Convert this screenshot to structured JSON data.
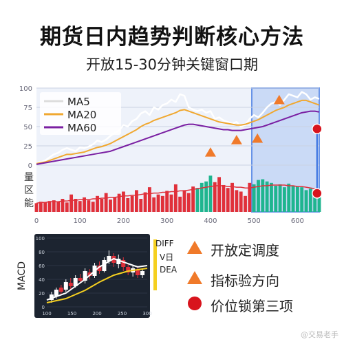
{
  "header": {
    "title": "期货日内趋势判断核心方法",
    "subtitle": "开放15-30分钟关键窗口期"
  },
  "chart_data": [
    {
      "type": "line",
      "panel": "main",
      "x": [
        0,
        10,
        20,
        30,
        40,
        50,
        60,
        70,
        80,
        90,
        100,
        110,
        120,
        130,
        140,
        150,
        160,
        170,
        180,
        190,
        200,
        210,
        220,
        230,
        240,
        250,
        260,
        270,
        280,
        290,
        300,
        310,
        320,
        330,
        340,
        350,
        360,
        370,
        380,
        390,
        400,
        410,
        420,
        430,
        440,
        450,
        460,
        470,
        480,
        490,
        500,
        510,
        520,
        530,
        540,
        550,
        560,
        570,
        580,
        590,
        600,
        610,
        620,
        630,
        640,
        650
      ],
      "series": [
        {
          "name": "MA5",
          "color": "#ffffff",
          "values": [
            3,
            4,
            6,
            10,
            14,
            16,
            20,
            22,
            20,
            18,
            23,
            22,
            24,
            27,
            32,
            30,
            33,
            38,
            42,
            45,
            52,
            50,
            57,
            60,
            67,
            70,
            65,
            75,
            72,
            78,
            80,
            85,
            82,
            92,
            90,
            75,
            72,
            70,
            72,
            68,
            70,
            60,
            62,
            58,
            56,
            54,
            56,
            50,
            52,
            60,
            65,
            62,
            68,
            75,
            80,
            82,
            78,
            85,
            92,
            90,
            88,
            95,
            92,
            85,
            88,
            86
          ]
        },
        {
          "name": "MA20",
          "color": "#f0a830",
          "values": [
            2,
            3,
            4,
            6,
            8,
            10,
            12,
            14,
            14,
            15,
            16,
            17,
            19,
            21,
            23,
            24,
            26,
            28,
            31,
            34,
            37,
            40,
            43,
            46,
            50,
            53,
            55,
            58,
            60,
            62,
            64,
            66,
            68,
            71,
            72,
            70,
            68,
            66,
            64,
            62,
            60,
            58,
            56,
            55,
            54,
            53,
            52,
            52,
            53,
            55,
            57,
            59,
            62,
            65,
            68,
            71,
            73,
            75,
            78,
            80,
            82,
            84,
            84,
            82,
            80,
            78
          ]
        },
        {
          "name": "MA60",
          "color": "#7a1fa2",
          "values": [
            1,
            2,
            3,
            4,
            5,
            6,
            7,
            8,
            9,
            10,
            11,
            12,
            13,
            14,
            15,
            16,
            17,
            18,
            20,
            22,
            24,
            26,
            28,
            30,
            32,
            34,
            36,
            38,
            40,
            42,
            44,
            46,
            48,
            50,
            52,
            53,
            53,
            52,
            51,
            50,
            49,
            48,
            47,
            46,
            46,
            45,
            45,
            45,
            46,
            47,
            48,
            49,
            50,
            52,
            54,
            56,
            58,
            60,
            62,
            64,
            66,
            68,
            69,
            70,
            70,
            69
          ]
        }
      ],
      "xlim": [
        0,
        650
      ],
      "ylim": [
        0,
        100
      ],
      "x_ticks": [
        0,
        100,
        200,
        300,
        400,
        500,
        600
      ],
      "y_ticks": [
        0,
        25,
        50,
        75,
        100
      ],
      "markers": {
        "up_triangles": [
          {
            "x": 400,
            "y": 16
          },
          {
            "x": 460,
            "y": 32
          },
          {
            "x": 508,
            "y": 34
          }
        ],
        "down_triangle": {
          "x": 558,
          "y": 84
        },
        "red_dots": [
          {
            "x": 645,
            "y": 47
          },
          {
            "x": 645,
            "y": -35
          }
        ]
      },
      "highlight_range": [
        495,
        650
      ],
      "volume": {
        "label": [
          "量",
          "区",
          "能"
        ],
        "values": [
          12,
          14,
          13,
          15,
          16,
          14,
          18,
          13,
          24,
          18,
          15,
          20,
          16,
          14,
          22,
          18,
          26,
          17,
          20,
          25,
          28,
          19,
          22,
          30,
          18,
          27,
          34,
          20,
          24,
          22,
          29,
          24,
          38,
          21,
          30,
          26,
          35,
          33,
          40,
          42,
          50,
          41,
          48,
          37,
          33,
          40,
          30,
          28,
          22,
          40,
          38,
          44,
          45,
          42,
          40,
          36,
          38,
          34,
          39,
          36,
          35,
          34,
          30,
          32,
          28,
          25
        ],
        "colors": [
          "r",
          "r",
          "r",
          "r",
          "r",
          "r",
          "r",
          "r",
          "r",
          "r",
          "r",
          "r",
          "r",
          "r",
          "r",
          "r",
          "r",
          "r",
          "r",
          "r",
          "r",
          "r",
          "r",
          "r",
          "r",
          "r",
          "r",
          "r",
          "r",
          "r",
          "r",
          "r",
          "r",
          "r",
          "r",
          "r",
          "r",
          "g",
          "g",
          "g",
          "g",
          "r",
          "r",
          "r",
          "r",
          "r",
          "r",
          "r",
          "r",
          "r",
          "g",
          "g",
          "g",
          "g",
          "g",
          "g",
          "g",
          "g",
          "g",
          "g",
          "g",
          "g",
          "g",
          "g",
          "g",
          "g"
        ],
        "ma": [
          12,
          13,
          13,
          14,
          14,
          14,
          15,
          15,
          16,
          16,
          17,
          17,
          17,
          18,
          18,
          19,
          19,
          20,
          20,
          21,
          22,
          22,
          23,
          23,
          24,
          25,
          25,
          26,
          26,
          27,
          27,
          28,
          28,
          29,
          29,
          30,
          31,
          32,
          33,
          34,
          35,
          36,
          36,
          36,
          35,
          35,
          34,
          34,
          33,
          33,
          34,
          35,
          36,
          36,
          37,
          37,
          37,
          37,
          36,
          36,
          35,
          35,
          34,
          33,
          32,
          31
        ]
      },
      "ylabel": ""
    },
    {
      "type": "candlestick",
      "panel": "macd",
      "ylabel": "MACD",
      "xlim": [
        0,
        300
      ],
      "ylim": [
        0,
        100
      ],
      "x_ticks": [
        100,
        150,
        200,
        250,
        300
      ],
      "x_tick_labels": [
        "100",
        "150",
        "200",
        "250",
        "300"
      ],
      "y_ticks": [
        0,
        20,
        40,
        60,
        80,
        100
      ],
      "candles": [
        {
          "x": 10,
          "o": 10,
          "c": 18,
          "h": 22,
          "l": 6
        },
        {
          "x": 20,
          "o": 15,
          "c": 25,
          "h": 28,
          "l": 12
        },
        {
          "x": 30,
          "o": 28,
          "c": 22,
          "h": 32,
          "l": 18
        },
        {
          "x": 40,
          "o": 25,
          "c": 36,
          "h": 40,
          "l": 22
        },
        {
          "x": 50,
          "o": 35,
          "c": 30,
          "h": 42,
          "l": 26
        },
        {
          "x": 60,
          "o": 30,
          "c": 42,
          "h": 46,
          "l": 28
        },
        {
          "x": 70,
          "o": 42,
          "c": 38,
          "h": 48,
          "l": 34
        },
        {
          "x": 80,
          "o": 38,
          "c": 52,
          "h": 56,
          "l": 34
        },
        {
          "x": 90,
          "o": 50,
          "c": 45,
          "h": 55,
          "l": 40
        },
        {
          "x": 100,
          "o": 45,
          "c": 60,
          "h": 64,
          "l": 42
        },
        {
          "x": 110,
          "o": 60,
          "c": 52,
          "h": 66,
          "l": 48
        },
        {
          "x": 120,
          "o": 52,
          "c": 68,
          "h": 72,
          "l": 50
        },
        {
          "x": 130,
          "o": 66,
          "c": 74,
          "h": 82,
          "l": 62
        },
        {
          "x": 140,
          "o": 74,
          "c": 64,
          "h": 78,
          "l": 58
        },
        {
          "x": 150,
          "o": 62,
          "c": 70,
          "h": 76,
          "l": 56
        },
        {
          "x": 160,
          "o": 68,
          "c": 58,
          "h": 72,
          "l": 52
        },
        {
          "x": 170,
          "o": 58,
          "c": 50,
          "h": 62,
          "l": 46
        },
        {
          "x": 180,
          "o": 50,
          "c": 56,
          "h": 60,
          "l": 44
        },
        {
          "x": 190,
          "o": 54,
          "c": 46,
          "h": 58,
          "l": 42
        },
        {
          "x": 200,
          "o": 46,
          "c": 52,
          "h": 56,
          "l": 42
        }
      ],
      "series": [
        {
          "name": "DIFF",
          "color": "#ffffff",
          "values": [
            {
              "x": 0,
              "y": 10
            },
            {
              "x": 40,
              "y": 20
            },
            {
              "x": 80,
              "y": 40
            },
            {
              "x": 110,
              "y": 58
            },
            {
              "x": 140,
              "y": 70
            },
            {
              "x": 165,
              "y": 64
            },
            {
              "x": 190,
              "y": 58
            },
            {
              "x": 210,
              "y": 60
            }
          ]
        },
        {
          "name": "DEA",
          "color": "#f5d020",
          "values": [
            {
              "x": 0,
              "y": 6
            },
            {
              "x": 40,
              "y": 12
            },
            {
              "x": 80,
              "y": 24
            },
            {
              "x": 110,
              "y": 36
            },
            {
              "x": 140,
              "y": 46
            },
            {
              "x": 170,
              "y": 52
            },
            {
              "x": 210,
              "y": 56
            }
          ]
        }
      ],
      "legend": {
        "diff": "DIFF",
        "mid": "V日",
        "dea": "DEA"
      }
    }
  ],
  "legend_items": [
    {
      "label": "开放定调度",
      "marker": "triangle",
      "color": "#f07a2a"
    },
    {
      "label": "指标验方向",
      "marker": "triangle",
      "color": "#f07a2a"
    },
    {
      "label": "价位锁第三项",
      "marker": "circle",
      "color": "#d8141d"
    }
  ],
  "watermark": "@交易老手"
}
